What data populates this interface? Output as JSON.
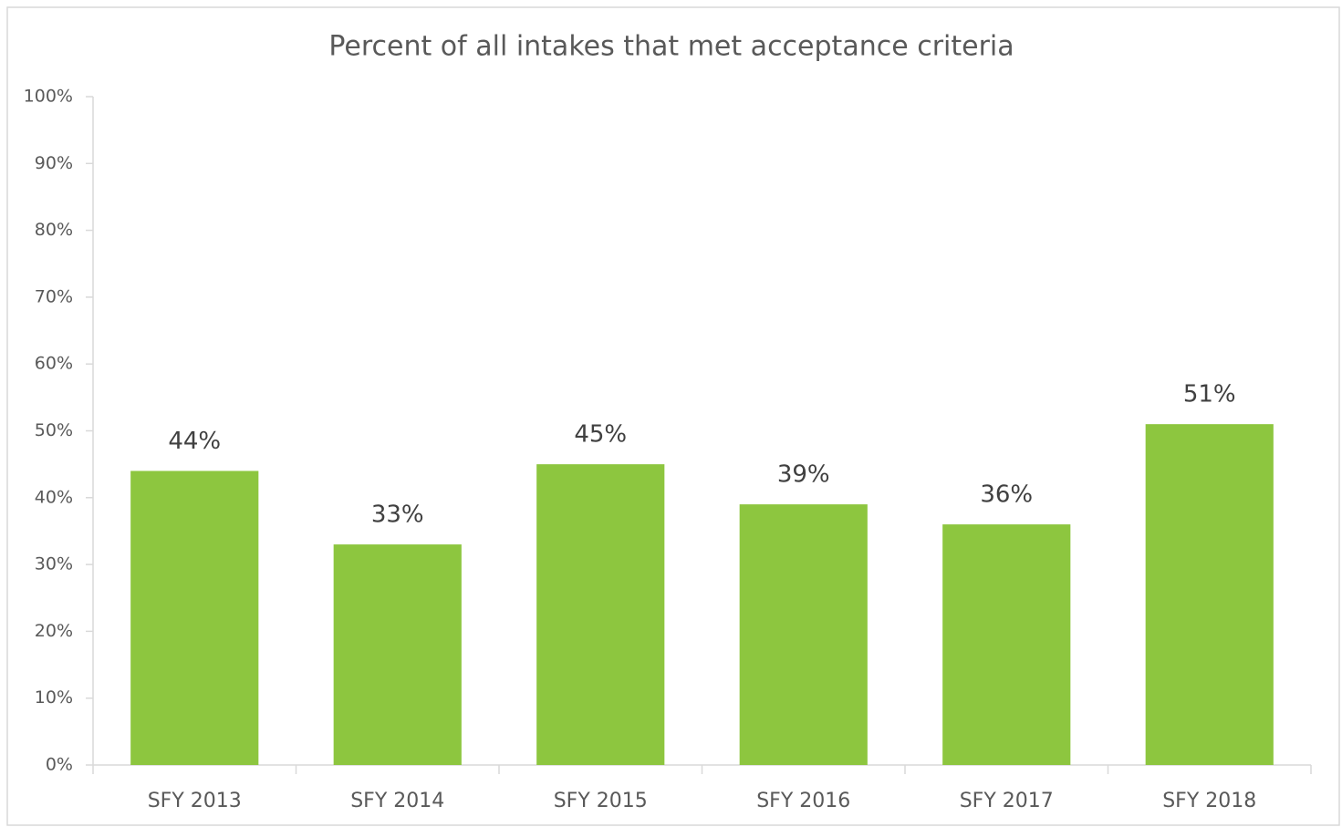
{
  "chart_data": {
    "type": "bar",
    "title": "Percent of all intakes that met acceptance criteria",
    "categories": [
      "SFY 2013",
      "SFY 2014",
      "SFY 2015",
      "SFY 2016",
      "SFY 2017",
      "SFY 2018"
    ],
    "values": [
      44,
      33,
      45,
      39,
      36,
      51
    ],
    "value_labels": [
      "44%",
      "33%",
      "45%",
      "39%",
      "36%",
      "51%"
    ],
    "color": "#8dc63f",
    "ylim": [
      0,
      100
    ],
    "yticks": [
      {
        "value": 0,
        "label": "0%"
      },
      {
        "value": 10,
        "label": "10%"
      },
      {
        "value": 20,
        "label": "20%"
      },
      {
        "value": 30,
        "label": "30%"
      },
      {
        "value": 40,
        "label": "40%"
      },
      {
        "value": 50,
        "label": "50%"
      },
      {
        "value": 60,
        "label": "60%"
      },
      {
        "value": 70,
        "label": "70%"
      },
      {
        "value": 80,
        "label": "80%"
      },
      {
        "value": 90,
        "label": "90%"
      },
      {
        "value": 100,
        "label": "100%"
      }
    ],
    "grid": false
  }
}
